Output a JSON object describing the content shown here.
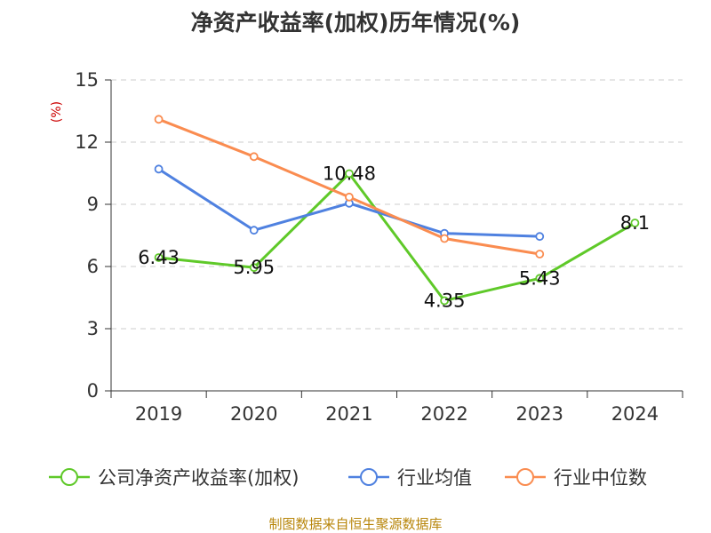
{
  "chart_data": {
    "type": "line",
    "title": "净资产收益率(加权)历年情况(%)",
    "ylabel": "(%)",
    "xlabel": "",
    "categories": [
      "2019",
      "2020",
      "2021",
      "2022",
      "2023",
      "2024"
    ],
    "ylim": [
      0,
      15
    ],
    "yticks": [
      0,
      3,
      6,
      9,
      12,
      15
    ],
    "grid": true,
    "legend_position": "bottom",
    "series": [
      {
        "name": "公司净资产收益率(加权)",
        "color": "#5fc929",
        "values": [
          6.43,
          5.95,
          10.48,
          4.35,
          5.43,
          8.1
        ],
        "labels": [
          "6.43",
          "5.95",
          "10.48",
          "4.35",
          "5.43",
          "8.1"
        ],
        "show_labels": true
      },
      {
        "name": "行业均值",
        "color": "#4f81e0",
        "values": [
          10.7,
          7.75,
          9.05,
          7.6,
          7.45,
          null
        ],
        "show_labels": false
      },
      {
        "name": "行业中位数",
        "color": "#fa8c50",
        "values": [
          13.1,
          11.3,
          9.35,
          7.35,
          6.6,
          null
        ],
        "show_labels": false
      }
    ],
    "source": "制图数据来自恒生聚源数据库"
  }
}
